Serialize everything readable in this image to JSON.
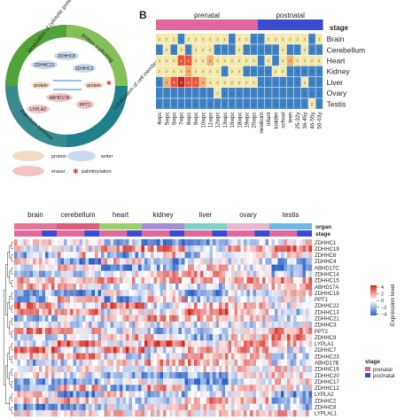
{
  "panel_a": {
    "segments": [
      {
        "label": "Modulation of cytosolic proteins",
        "color": "#52a43a"
      },
      {
        "label": "protein trafficking",
        "color": "#86c05a"
      },
      {
        "label": "Localization of cell membrane",
        "color": "#1f7f8a"
      },
      {
        "label": "Palmitate turnover",
        "color": "#3a8b90"
      }
    ],
    "center_labels": [
      "ZDHHC8",
      "ZDHHC21",
      "ZDHHC3",
      "protein",
      "protein",
      "ABHD17A",
      "LYPLA2",
      "PPT1"
    ],
    "legend": [
      {
        "label": "protein",
        "color": "#f3dcc0"
      },
      {
        "label": "writer",
        "color": "#c9d9ef"
      },
      {
        "label": "eraser",
        "color": "#f2c4c4"
      },
      {
        "label": "palmitoylation",
        "color": "#d33"
      }
    ]
  },
  "panel_b": {
    "panel_letter": "B",
    "stage_label": "stage",
    "prenatal_label": "prenatal",
    "postnatal_label": "postnatal",
    "prenatal_color": "#e0689a",
    "postnatal_color": "#3b4bd0",
    "rows": [
      "Brain",
      "Cerebellum",
      "Heart",
      "Kidney",
      "Liver",
      "Ovary",
      "Testis"
    ],
    "columns": [
      "4wpc",
      "5wpc",
      "6wpc",
      "7wpc",
      "8wpc",
      "9wpc",
      "10wpc",
      "11wpc",
      "12wpc",
      "13wpc",
      "16wpc",
      "18wpc",
      "19wpc",
      "20wpc",
      "newborn",
      "infant",
      "toddler",
      "school",
      "teen",
      "25-32y",
      "36-45y",
      "46-55y",
      "56-63y"
    ],
    "n_prenatal": 14,
    "counts": [
      [
        2,
        2,
        2,
        1,
        2,
        2,
        2,
        2,
        2,
        2,
        1,
        2,
        2,
        1,
        1,
        2,
        2,
        2,
        2,
        2,
        2,
        1,
        2
      ],
      [
        1,
        2,
        1,
        2,
        1,
        2,
        2,
        2,
        1,
        1,
        1,
        2,
        1,
        1,
        1,
        1,
        1,
        2,
        1,
        1,
        2,
        1,
        1
      ],
      [
        2,
        2,
        2,
        4,
        4,
        2,
        2,
        3,
        2,
        2,
        2,
        2,
        2,
        2,
        1,
        2,
        1,
        2,
        3,
        2,
        2,
        2,
        2
      ],
      [
        2,
        2,
        2,
        2,
        3,
        2,
        2,
        2,
        2,
        1,
        2,
        2,
        1,
        1,
        1,
        1,
        2,
        2,
        1,
        1,
        1,
        1,
        1
      ],
      [
        1,
        3,
        4,
        5,
        4,
        4,
        3,
        2,
        2,
        2,
        2,
        2,
        2,
        2,
        1,
        1,
        1,
        1,
        1,
        1,
        2,
        1,
        1
      ],
      [
        1,
        1,
        1,
        1,
        1,
        1,
        1,
        1,
        2,
        1,
        1,
        1,
        1,
        1,
        1,
        1,
        1,
        1,
        1,
        1,
        1,
        1,
        1
      ],
      [
        1,
        1,
        1,
        1,
        1,
        1,
        1,
        1,
        1,
        1,
        1,
        1,
        1,
        1,
        1,
        1,
        1,
        1,
        1,
        1,
        1,
        2,
        1
      ]
    ]
  },
  "panel_c": {
    "organ_label": "organ",
    "stage_label": "stage",
    "organs": [
      {
        "label": "brain",
        "color": "#e8739a"
      },
      {
        "label": "cerebellum",
        "color": "#df5b7b"
      },
      {
        "label": "heart",
        "color": "#9ad06a"
      },
      {
        "label": "kidney",
        "color": "#a48ed6"
      },
      {
        "label": "liver",
        "color": "#7fd1c6"
      },
      {
        "label": "ovary",
        "color": "#e7b6d0"
      },
      {
        "label": "testis",
        "color": "#6eb8e8"
      }
    ],
    "genes": [
      "ZDHHC1",
      "ZDHHC19",
      "ZDHHC6",
      "ZDHHC4",
      "ABHD17C",
      "ZDHHC14",
      "ZDHHC15",
      "ABHD17A",
      "ZDHHC18",
      "PPT1",
      "ZDHHC22",
      "ZDHHC13",
      "ZDHHC21",
      "ZDHHC3",
      "PPT2",
      "ZDHHC9",
      "LYPLA1",
      "ZDHHC7",
      "ZDHHC23",
      "ABHD17B",
      "ZDHHC16",
      "ZDHHC20",
      "ZDHHC17",
      "ZDHHC12",
      "LYPLA2",
      "ZDHHC2",
      "ZDHHC8",
      "LYPLAL1"
    ],
    "legend_title": "Expression level",
    "legend_ticks": [
      "4",
      "2",
      "0",
      "−2",
      "−4"
    ],
    "stage_legend_title": "stage",
    "stage_legend": [
      {
        "label": "prenatal",
        "color": "#e0689a"
      },
      {
        "label": "postnatal",
        "color": "#3b4bd0"
      }
    ]
  }
}
